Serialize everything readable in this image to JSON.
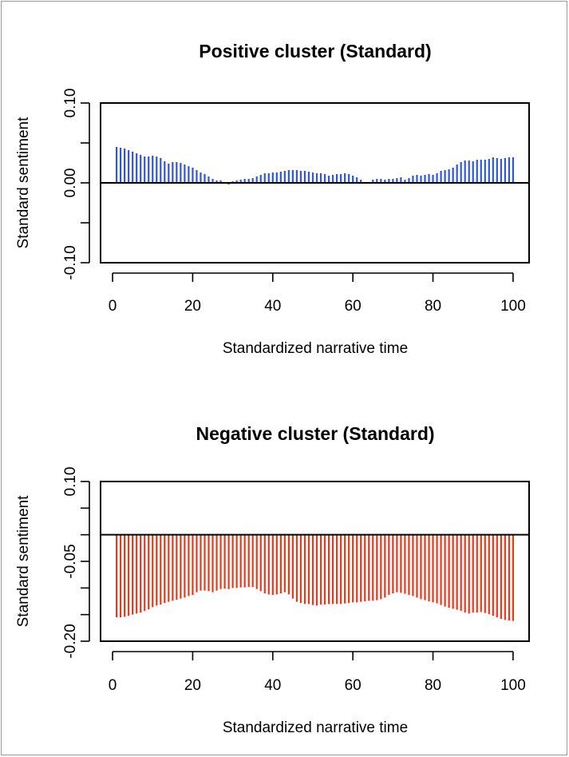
{
  "chart_data": [
    {
      "type": "bar",
      "title": "Positive cluster (Standard)",
      "xlabel": "Standardized narrative time",
      "ylabel": "Standard sentiment",
      "xlim": [
        -3,
        104
      ],
      "ylim": [
        -0.1,
        0.1
      ],
      "x_ticks": [
        "0",
        "20",
        "40",
        "60",
        "80",
        "100"
      ],
      "y_ticks": [
        "-0.10",
        "0.00",
        "0.10"
      ],
      "grid": false,
      "color": "#2f55e0",
      "x": [
        1,
        2,
        3,
        4,
        5,
        6,
        7,
        8,
        9,
        10,
        11,
        12,
        13,
        14,
        15,
        16,
        17,
        18,
        19,
        20,
        21,
        22,
        23,
        24,
        25,
        26,
        27,
        28,
        29,
        30,
        31,
        32,
        33,
        34,
        35,
        36,
        37,
        38,
        39,
        40,
        41,
        42,
        43,
        44,
        45,
        46,
        47,
        48,
        49,
        50,
        51,
        52,
        53,
        54,
        55,
        56,
        57,
        58,
        59,
        60,
        61,
        62,
        63,
        64,
        65,
        66,
        67,
        68,
        69,
        70,
        71,
        72,
        73,
        74,
        75,
        76,
        77,
        78,
        79,
        80,
        81,
        82,
        83,
        84,
        85,
        86,
        87,
        88,
        89,
        90,
        91,
        92,
        93,
        94,
        95,
        96,
        97,
        98,
        99,
        100
      ],
      "values": [
        0.045,
        0.044,
        0.043,
        0.041,
        0.039,
        0.037,
        0.035,
        0.033,
        0.033,
        0.034,
        0.033,
        0.031,
        0.027,
        0.024,
        0.026,
        0.026,
        0.025,
        0.023,
        0.021,
        0.019,
        0.016,
        0.013,
        0.011,
        0.008,
        0.005,
        0.003,
        0.003,
        0.0,
        -0.002,
        0.002,
        0.003,
        0.004,
        0.005,
        0.005,
        0.006,
        0.008,
        0.01,
        0.012,
        0.012,
        0.013,
        0.013,
        0.014,
        0.015,
        0.016,
        0.016,
        0.016,
        0.015,
        0.015,
        0.014,
        0.013,
        0.012,
        0.012,
        0.011,
        0.009,
        0.01,
        0.011,
        0.011,
        0.012,
        0.011,
        0.009,
        0.007,
        0.004,
        0.001,
        0.0,
        0.004,
        0.005,
        0.005,
        0.004,
        0.005,
        0.005,
        0.006,
        0.007,
        0.004,
        0.006,
        0.009,
        0.01,
        0.009,
        0.01,
        0.011,
        0.01,
        0.012,
        0.015,
        0.016,
        0.017,
        0.019,
        0.023,
        0.026,
        0.028,
        0.028,
        0.027,
        0.029,
        0.029,
        0.029,
        0.03,
        0.032,
        0.031,
        0.03,
        0.031,
        0.032,
        0.032
      ]
    },
    {
      "type": "bar",
      "title": "Negative cluster (Standard)",
      "xlabel": "Standardized narrative time",
      "ylabel": "Standard sentiment",
      "xlim": [
        -3,
        104
      ],
      "ylim": [
        -0.2,
        0.1
      ],
      "x_ticks": [
        "0",
        "20",
        "40",
        "60",
        "80",
        "100"
      ],
      "y_ticks": [
        "-0.20",
        "-0.05",
        "0.10"
      ],
      "grid": false,
      "color": "#e8391c",
      "x": [
        1,
        2,
        3,
        4,
        5,
        6,
        7,
        8,
        9,
        10,
        11,
        12,
        13,
        14,
        15,
        16,
        17,
        18,
        19,
        20,
        21,
        22,
        23,
        24,
        25,
        26,
        27,
        28,
        29,
        30,
        31,
        32,
        33,
        34,
        35,
        36,
        37,
        38,
        39,
        40,
        41,
        42,
        43,
        44,
        45,
        46,
        47,
        48,
        49,
        50,
        51,
        52,
        53,
        54,
        55,
        56,
        57,
        58,
        59,
        60,
        61,
        62,
        63,
        64,
        65,
        66,
        67,
        68,
        69,
        70,
        71,
        72,
        73,
        74,
        75,
        76,
        77,
        78,
        79,
        80,
        81,
        82,
        83,
        84,
        85,
        86,
        87,
        88,
        89,
        90,
        91,
        92,
        93,
        94,
        95,
        96,
        97,
        98,
        99,
        100
      ],
      "values": [
        -0.155,
        -0.155,
        -0.154,
        -0.152,
        -0.15,
        -0.148,
        -0.146,
        -0.143,
        -0.14,
        -0.136,
        -0.133,
        -0.131,
        -0.128,
        -0.126,
        -0.124,
        -0.122,
        -0.12,
        -0.118,
        -0.115,
        -0.113,
        -0.108,
        -0.105,
        -0.105,
        -0.106,
        -0.108,
        -0.105,
        -0.102,
        -0.101,
        -0.102,
        -0.1,
        -0.1,
        -0.099,
        -0.099,
        -0.098,
        -0.098,
        -0.102,
        -0.106,
        -0.11,
        -0.112,
        -0.113,
        -0.112,
        -0.11,
        -0.108,
        -0.112,
        -0.12,
        -0.126,
        -0.128,
        -0.13,
        -0.13,
        -0.132,
        -0.133,
        -0.131,
        -0.131,
        -0.13,
        -0.13,
        -0.13,
        -0.13,
        -0.129,
        -0.128,
        -0.127,
        -0.127,
        -0.126,
        -0.125,
        -0.124,
        -0.124,
        -0.123,
        -0.121,
        -0.118,
        -0.113,
        -0.11,
        -0.108,
        -0.109,
        -0.111,
        -0.113,
        -0.115,
        -0.118,
        -0.121,
        -0.123,
        -0.125,
        -0.127,
        -0.129,
        -0.132,
        -0.135,
        -0.137,
        -0.139,
        -0.141,
        -0.143,
        -0.146,
        -0.148,
        -0.146,
        -0.146,
        -0.145,
        -0.147,
        -0.149,
        -0.152,
        -0.155,
        -0.158,
        -0.16,
        -0.161,
        -0.162
      ]
    }
  ]
}
